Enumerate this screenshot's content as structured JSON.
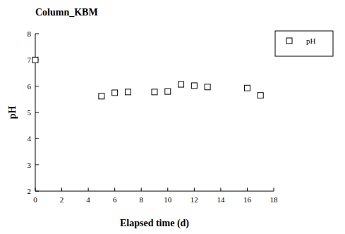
{
  "chart_data": {
    "type": "scatter",
    "title": "Column_KBM",
    "x_label": "Elapsed time (d)",
    "y_label": "pH",
    "x": [
      0,
      5,
      6,
      7,
      9,
      10,
      11,
      12,
      13,
      16,
      17
    ],
    "series": [
      {
        "name": "pH",
        "color": "#000000",
        "marker": "square",
        "values": [
          7.0,
          5.62,
          5.75,
          5.78,
          5.78,
          5.8,
          6.07,
          6.02,
          5.97,
          5.93,
          5.65
        ]
      }
    ],
    "xlim": [
      0,
      18
    ],
    "xticks": [
      0,
      2,
      4,
      6,
      8,
      10,
      12,
      14,
      16,
      18
    ],
    "ylim": [
      2,
      8
    ],
    "yticks": [
      2,
      3,
      4,
      5,
      6,
      7,
      8
    ],
    "grid": false,
    "legend": "right"
  }
}
